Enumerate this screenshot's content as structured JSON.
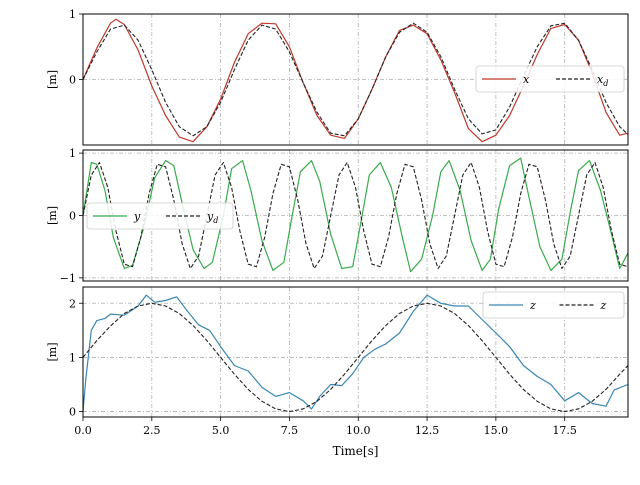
{
  "chart_data": [
    {
      "type": "line",
      "ylabel": "[m]",
      "xlim": [
        0,
        19.8
      ],
      "ylim": [
        -1.0,
        1.0
      ],
      "yticks": [
        1,
        0
      ],
      "ytick_labels": [
        "1",
        "0"
      ],
      "grid": true,
      "legend_position": "right",
      "series": [
        {
          "name": "x",
          "role": "measured",
          "color": "#c0392b",
          "x": [
            0,
            0.5,
            1,
            1.2,
            1.5,
            2,
            2.5,
            3,
            3.5,
            4,
            4.5,
            5,
            5.5,
            6,
            6.5,
            7,
            7.5,
            8,
            8.5,
            9,
            9.5,
            10,
            10.5,
            11,
            11.5,
            12,
            12.5,
            13,
            13.5,
            14,
            14.5,
            15,
            15.5,
            16,
            16.5,
            17,
            17.5,
            18,
            18.5,
            19,
            19.5,
            19.8
          ],
          "y": [
            0,
            0.48,
            0.86,
            0.92,
            0.84,
            0.45,
            -0.1,
            -0.55,
            -0.88,
            -0.95,
            -0.72,
            -0.3,
            0.26,
            0.7,
            0.86,
            0.85,
            0.5,
            -0.05,
            -0.55,
            -0.85,
            -0.9,
            -0.6,
            -0.15,
            0.35,
            0.75,
            0.83,
            0.7,
            0.3,
            -0.2,
            -0.75,
            -0.95,
            -0.85,
            -0.55,
            -0.1,
            0.38,
            0.78,
            0.84,
            0.6,
            0.1,
            -0.5,
            -0.85,
            -0.82
          ]
        },
        {
          "name": "x_d",
          "role": "desired",
          "color": "#222222",
          "x": [
            0,
            0.5,
            1,
            1.5,
            2,
            2.5,
            3,
            3.5,
            4,
            4.5,
            5,
            5.5,
            6,
            6.5,
            7,
            7.5,
            8,
            8.5,
            9,
            9.5,
            10,
            10.5,
            11,
            11.5,
            12,
            12.5,
            13,
            13.5,
            14,
            14.5,
            15,
            15.5,
            16,
            16.5,
            17,
            17.5,
            18,
            18.5,
            19,
            19.5,
            19.8
          ],
          "y": [
            0,
            0.42,
            0.77,
            0.83,
            0.6,
            0.15,
            -0.35,
            -0.72,
            -0.86,
            -0.72,
            -0.35,
            0.15,
            0.6,
            0.83,
            0.77,
            0.42,
            -0.05,
            -0.5,
            -0.82,
            -0.86,
            -0.6,
            -0.15,
            0.35,
            0.72,
            0.86,
            0.72,
            0.35,
            -0.15,
            -0.6,
            -0.83,
            -0.77,
            -0.42,
            0.05,
            0.5,
            0.82,
            0.86,
            0.6,
            0.15,
            -0.35,
            -0.72,
            -0.84
          ]
        }
      ]
    },
    {
      "type": "line",
      "ylabel": "[m]",
      "xlim": [
        0,
        19.8
      ],
      "ylim": [
        -1.05,
        1.05
      ],
      "yticks": [
        1,
        0,
        -1
      ],
      "ytick_labels": [
        "1",
        "0",
        "−1"
      ],
      "grid": true,
      "legend_position": "left",
      "series": [
        {
          "name": "y",
          "role": "measured",
          "color": "#3aaa4b",
          "x": [
            0,
            0.3,
            0.5,
            0.8,
            1.1,
            1.5,
            1.8,
            2.2,
            2.6,
            3,
            3.3,
            3.6,
            4,
            4.4,
            4.7,
            5.1,
            5.4,
            5.8,
            6.1,
            6.5,
            6.9,
            7.3,
            7.6,
            7.9,
            8.3,
            8.6,
            9,
            9.4,
            9.8,
            10.1,
            10.4,
            10.8,
            11.2,
            11.6,
            11.9,
            12.3,
            12.7,
            13,
            13.3,
            13.7,
            14.1,
            14.5,
            14.8,
            15.1,
            15.5,
            15.9,
            16.2,
            16.6,
            17,
            17.4,
            17.7,
            18,
            18.4,
            18.8,
            19.2,
            19.5,
            19.8
          ],
          "y": [
            0,
            0.85,
            0.82,
            0.4,
            -0.35,
            -0.85,
            -0.8,
            -0.2,
            0.6,
            0.88,
            0.8,
            0.2,
            -0.55,
            -0.85,
            -0.75,
            0,
            0.75,
            0.88,
            0.4,
            -0.4,
            -0.88,
            -0.75,
            0,
            0.7,
            0.88,
            0.55,
            -0.3,
            -0.85,
            -0.82,
            -0.1,
            0.65,
            0.85,
            0.45,
            -0.35,
            -0.9,
            -0.7,
            0,
            0.7,
            0.88,
            0.4,
            -0.4,
            -0.88,
            -0.7,
            0.1,
            0.8,
            0.92,
            0.3,
            -0.5,
            -0.88,
            -0.7,
            0.05,
            0.72,
            0.88,
            0.4,
            -0.3,
            -0.85,
            -0.6
          ]
        },
        {
          "name": "y_d",
          "role": "desired",
          "color": "#222222",
          "x": [
            0,
            0.3,
            0.6,
            0.9,
            1.2,
            1.5,
            1.8,
            2.1,
            2.4,
            2.7,
            3,
            3.3,
            3.6,
            3.9,
            4.2,
            4.5,
            4.8,
            5.1,
            5.4,
            5.7,
            6,
            6.3,
            6.6,
            6.9,
            7.2,
            7.5,
            7.8,
            8.1,
            8.4,
            8.7,
            9,
            9.3,
            9.6,
            9.9,
            10.2,
            10.5,
            10.8,
            11.1,
            11.4,
            11.7,
            12,
            12.3,
            12.6,
            12.9,
            13.2,
            13.5,
            13.8,
            14.1,
            14.4,
            14.7,
            15,
            15.3,
            15.6,
            15.9,
            16.2,
            16.5,
            16.8,
            17.1,
            17.4,
            17.7,
            18,
            18.3,
            18.6,
            18.9,
            19.2,
            19.5,
            19.8
          ],
          "y": [
            0,
            0.65,
            0.85,
            0.45,
            -0.25,
            -0.78,
            -0.82,
            -0.35,
            0.35,
            0.82,
            0.78,
            0.25,
            -0.45,
            -0.85,
            -0.65,
            0,
            0.65,
            0.85,
            0.45,
            -0.25,
            -0.78,
            -0.82,
            -0.35,
            0.35,
            0.82,
            0.78,
            0.25,
            -0.45,
            -0.85,
            -0.65,
            0,
            0.65,
            0.85,
            0.45,
            -0.25,
            -0.78,
            -0.82,
            -0.35,
            0.35,
            0.82,
            0.78,
            0.25,
            -0.45,
            -0.85,
            -0.65,
            0,
            0.65,
            0.85,
            0.45,
            -0.25,
            -0.78,
            -0.82,
            -0.35,
            0.35,
            0.82,
            0.78,
            0.25,
            -0.45,
            -0.85,
            -0.65,
            0,
            0.65,
            0.85,
            0.45,
            -0.25,
            -0.78,
            -0.82
          ]
        }
      ]
    },
    {
      "type": "line",
      "xlabel": "Time[s]",
      "ylabel": "[m]",
      "xlim": [
        0,
        19.8
      ],
      "ylim": [
        -0.1,
        2.3
      ],
      "yticks": [
        2,
        1,
        0
      ],
      "ytick_labels": [
        "2",
        "1",
        "0"
      ],
      "xticks": [
        0,
        2.5,
        5,
        7.5,
        10,
        12.5,
        15,
        17.5
      ],
      "xtick_labels": [
        "0.0",
        "2.5",
        "5.0",
        "7.5",
        "10.0",
        "12.5",
        "15.0",
        "17.5"
      ],
      "grid": true,
      "legend_position": "top-right",
      "series": [
        {
          "name": "z",
          "role": "measured",
          "color": "#3a86b3",
          "x": [
            0,
            0.1,
            0.3,
            0.5,
            0.8,
            1,
            1.5,
            2,
            2.3,
            2.6,
            3,
            3.4,
            3.8,
            4.2,
            4.6,
            5,
            5.5,
            6,
            6.5,
            7,
            7.5,
            8,
            8.3,
            8.6,
            9,
            9.4,
            9.8,
            10.2,
            10.6,
            11,
            11.5,
            12,
            12.5,
            13,
            13.5,
            14,
            14.5,
            15,
            15.5,
            16,
            16.5,
            17,
            17.5,
            18,
            18.5,
            19,
            19.3,
            19.8
          ],
          "y": [
            0,
            0.6,
            1.5,
            1.68,
            1.72,
            1.8,
            1.78,
            1.95,
            2.15,
            2.02,
            2.05,
            2.12,
            1.85,
            1.6,
            1.5,
            1.2,
            0.85,
            0.75,
            0.45,
            0.28,
            0.35,
            0.2,
            0.05,
            0.28,
            0.5,
            0.48,
            0.7,
            1.0,
            1.15,
            1.25,
            1.45,
            1.85,
            2.15,
            2.0,
            1.95,
            1.95,
            1.7,
            1.45,
            1.2,
            0.85,
            0.65,
            0.5,
            0.2,
            0.35,
            0.15,
            0.1,
            0.4,
            0.5
          ]
        },
        {
          "name": "z",
          "role": "desired",
          "color": "#222222",
          "x": [
            0,
            0.5,
            1,
            1.5,
            2,
            2.5,
            3,
            3.5,
            4,
            4.5,
            5,
            5.5,
            6,
            6.5,
            7,
            7.5,
            8,
            8.5,
            9,
            9.5,
            10,
            10.5,
            11,
            11.5,
            12,
            12.5,
            13,
            13.5,
            14,
            14.5,
            15,
            15.5,
            16,
            16.5,
            17,
            17.5,
            18,
            18.5,
            19,
            19.5,
            19.8
          ],
          "y": [
            1.0,
            1.31,
            1.58,
            1.81,
            1.95,
            2.0,
            1.95,
            1.81,
            1.59,
            1.31,
            1.0,
            0.69,
            0.41,
            0.19,
            0.05,
            0.0,
            0.05,
            0.19,
            0.41,
            0.69,
            1.0,
            1.31,
            1.59,
            1.81,
            1.95,
            2.0,
            1.95,
            1.81,
            1.59,
            1.31,
            1.0,
            0.69,
            0.41,
            0.19,
            0.05,
            0.0,
            0.05,
            0.19,
            0.41,
            0.69,
            0.85
          ]
        }
      ]
    }
  ]
}
